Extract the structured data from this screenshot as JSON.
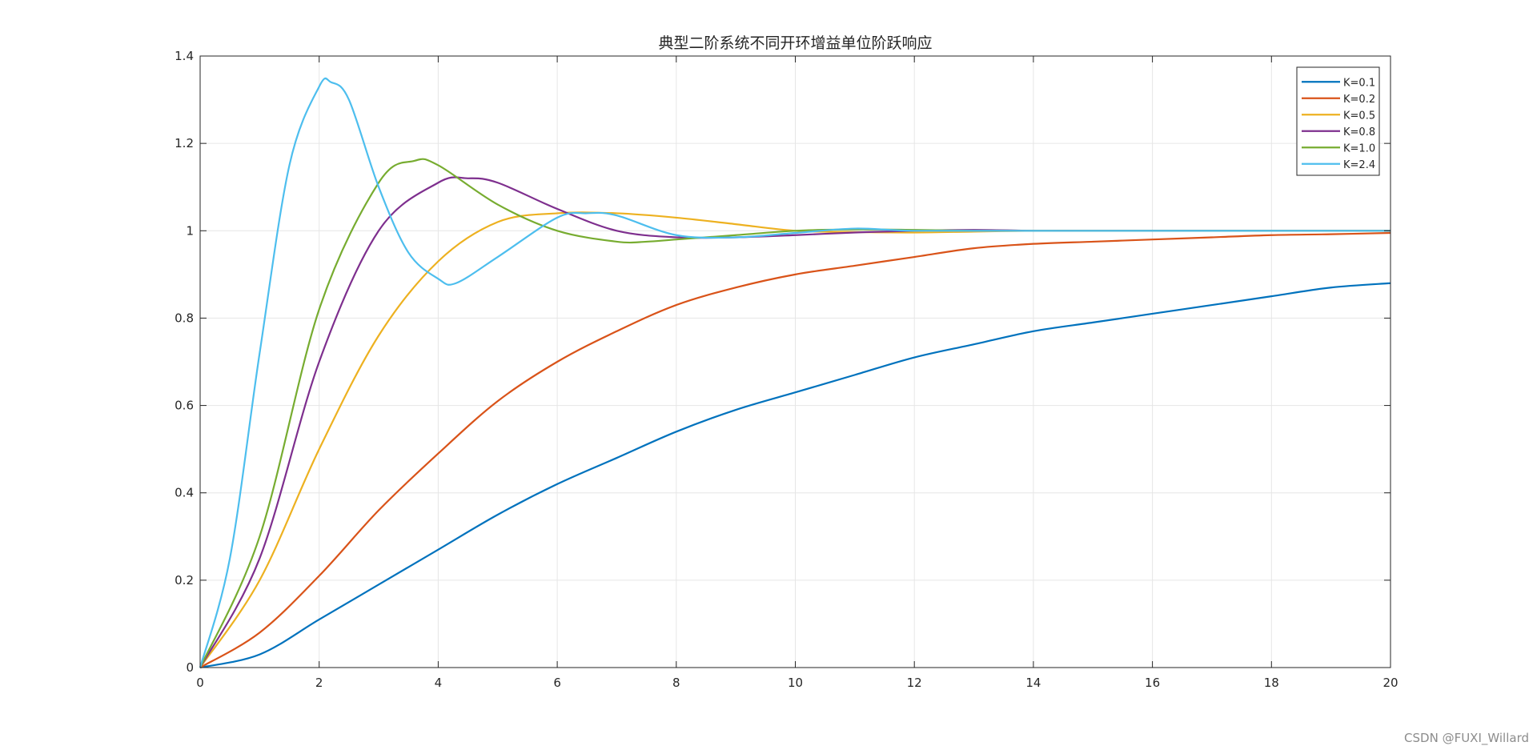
{
  "chart_data": {
    "type": "line",
    "title": "典型二阶系统不同开环增益单位阶跃响应",
    "xlabel": "",
    "ylabel": "",
    "xlim": [
      0,
      20
    ],
    "ylim": [
      0,
      1.4
    ],
    "xticks": [
      0,
      2,
      4,
      6,
      8,
      10,
      12,
      14,
      16,
      18,
      20
    ],
    "yticks": [
      0,
      0.2,
      0.4,
      0.6,
      0.8,
      1,
      1.2,
      1.4
    ],
    "xtick_labels": [
      "0",
      "2",
      "4",
      "6",
      "8",
      "10",
      "12",
      "14",
      "16",
      "18",
      "20"
    ],
    "ytick_labels": [
      "0",
      "0.2",
      "0.4",
      "0.6",
      "0.8",
      "1",
      "1.2",
      "1.4"
    ],
    "grid": true,
    "legend_position": "top-right",
    "series": [
      {
        "name": "K=0.1",
        "color": "#0072BD",
        "x": [
          0,
          1,
          2,
          3,
          4,
          5,
          6,
          7,
          8,
          9,
          10,
          11,
          12,
          13,
          14,
          15,
          16,
          17,
          18,
          19,
          20
        ],
        "y": [
          0,
          0.03,
          0.11,
          0.19,
          0.27,
          0.35,
          0.42,
          0.48,
          0.54,
          0.59,
          0.63,
          0.67,
          0.71,
          0.74,
          0.77,
          0.79,
          0.81,
          0.83,
          0.85,
          0.87,
          0.88
        ]
      },
      {
        "name": "K=0.2",
        "color": "#D95319",
        "x": [
          0,
          1,
          2,
          3,
          4,
          5,
          6,
          7,
          8,
          9,
          10,
          11,
          12,
          13,
          14,
          15,
          16,
          17,
          18,
          19,
          20
        ],
        "y": [
          0,
          0.08,
          0.21,
          0.36,
          0.49,
          0.61,
          0.7,
          0.77,
          0.83,
          0.87,
          0.9,
          0.92,
          0.94,
          0.96,
          0.97,
          0.975,
          0.98,
          0.985,
          0.99,
          0.992,
          0.995
        ]
      },
      {
        "name": "K=0.5",
        "color": "#EDB120",
        "x": [
          0,
          1,
          2,
          3,
          4,
          5,
          6,
          7,
          8,
          9,
          10,
          11,
          12,
          13,
          14,
          15,
          16,
          17,
          18,
          19,
          20
        ],
        "y": [
          0,
          0.2,
          0.5,
          0.76,
          0.93,
          1.02,
          1.04,
          1.04,
          1.03,
          1.015,
          1.0,
          0.997,
          0.996,
          0.998,
          1.0,
          1.0,
          1.0,
          1.0,
          1.0,
          1.0,
          1.0
        ]
      },
      {
        "name": "K=0.8",
        "color": "#7E2F8E",
        "x": [
          0,
          1,
          2,
          3,
          4,
          4.5,
          5,
          6,
          7,
          8,
          9,
          10,
          11,
          12,
          13,
          14,
          15,
          16,
          17,
          18,
          19,
          20
        ],
        "y": [
          0,
          0.25,
          0.7,
          1.0,
          1.11,
          1.12,
          1.11,
          1.05,
          1.0,
          0.985,
          0.985,
          0.99,
          0.996,
          1.0,
          1.002,
          1.0,
          1.0,
          1.0,
          1.0,
          1.0,
          1.0,
          1.0
        ]
      },
      {
        "name": "K=1.0",
        "color": "#77AC30",
        "x": [
          0,
          1,
          2,
          3,
          3.6,
          4,
          5,
          6,
          7,
          7.5,
          8,
          9,
          10,
          11,
          12,
          13,
          14,
          15,
          16,
          17,
          18,
          19,
          20
        ],
        "y": [
          0,
          0.3,
          0.82,
          1.11,
          1.16,
          1.15,
          1.06,
          1.0,
          0.975,
          0.975,
          0.98,
          0.99,
          1.0,
          1.003,
          1.002,
          1.0,
          1.0,
          1.0,
          1.0,
          1.0,
          1.0,
          1.0,
          1.0
        ]
      },
      {
        "name": "K=2.4",
        "color": "#4DBEEE",
        "x": [
          0,
          0.5,
          1,
          1.5,
          2,
          2.2,
          2.5,
          3,
          3.5,
          4,
          4.3,
          5,
          6,
          6.5,
          7,
          8,
          9,
          10,
          11,
          12,
          14,
          16,
          18,
          20
        ],
        "y": [
          0,
          0.25,
          0.72,
          1.15,
          1.33,
          1.34,
          1.3,
          1.1,
          0.95,
          0.89,
          0.88,
          0.94,
          1.03,
          1.04,
          1.035,
          0.99,
          0.985,
          0.995,
          1.005,
          1.0,
          1.0,
          1.0,
          1.0,
          1.0
        ]
      }
    ]
  },
  "watermark": "CSDN @FUXI_Willard"
}
